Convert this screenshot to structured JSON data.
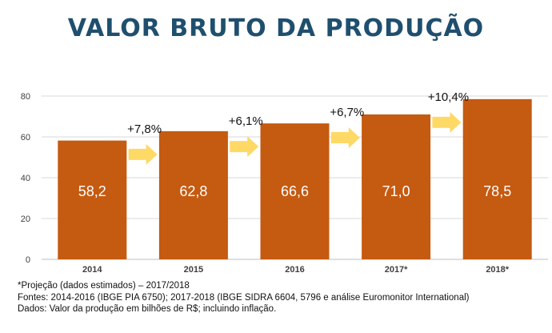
{
  "title": "VALOR BRUTO DA PRODUÇÃO",
  "chart_data": {
    "type": "bar",
    "categories": [
      "2014",
      "2015",
      "2016",
      "2017*",
      "2018*"
    ],
    "values": [
      58.2,
      62.8,
      66.6,
      71.0,
      78.5
    ],
    "value_labels": [
      "58,2",
      "62,8",
      "66,6",
      "71,0",
      "78,5"
    ],
    "growth_labels": [
      "+7,8%",
      "+6,1%",
      "+6,7%",
      "+10,4%"
    ],
    "yticks": [
      "0",
      "20",
      "40",
      "60",
      "80"
    ],
    "ytick_values": [
      0,
      20,
      40,
      60,
      80
    ],
    "ylim": [
      0,
      80
    ],
    "grid": true,
    "bar_color": "#c55a11",
    "arrow_color": "#ffd966"
  },
  "footnotes": [
    "*Projeção (dados estimados) – 2017/2018",
    "Fontes: 2014-2016 (IBGE PIA 6750); 2017-2018 (IBGE SIDRA 6604, 5796 e análise Euromonitor International)",
    "Dados: Valor da produção em bilhões de R$; incluindo inflação."
  ]
}
